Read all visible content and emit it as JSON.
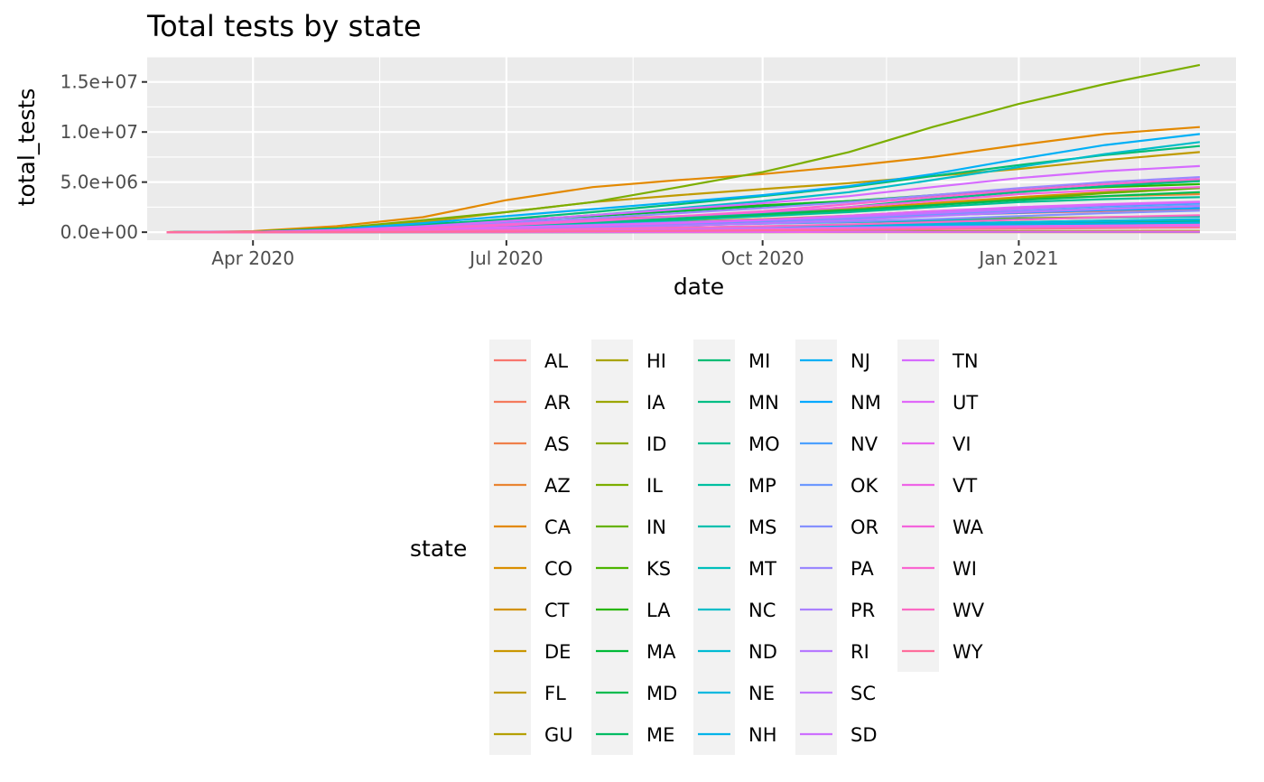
{
  "chart_data": {
    "type": "line",
    "title": "Total tests by state",
    "xlabel": "date",
    "ylabel": "total_tests",
    "x_tick_labels": [
      "Apr 2020",
      "Jul 2020",
      "Oct 2020",
      "Jan 2021"
    ],
    "x_ticks": [
      "2020-04-01",
      "2020-07-01",
      "2020-10-01",
      "2021-01-01"
    ],
    "y_tick_labels": [
      "0.0e+00",
      "5.0e+06",
      "1.0e+07",
      "1.5e+07"
    ],
    "y_ticks": [
      0,
      5000000,
      10000000,
      15000000
    ],
    "xlim": [
      "2020-02-23",
      "2021-03-20"
    ],
    "ylim": [
      -800000,
      17500000
    ],
    "grid": true,
    "legend_title": "state",
    "legend_position": "bottom",
    "x": [
      "2020-03-01",
      "2020-04-01",
      "2020-05-01",
      "2020-06-01",
      "2020-07-01",
      "2020-08-01",
      "2020-09-01",
      "2020-10-01",
      "2020-11-01",
      "2020-12-01",
      "2021-01-01",
      "2021-02-01",
      "2021-03-07"
    ],
    "series": [
      {
        "name": "AL",
        "color": "#F8766D",
        "values": [
          0,
          20000,
          120000,
          280000,
          480000,
          700000,
          1000000,
          1300000,
          1500000,
          1700000,
          1900000,
          2100000,
          2300000
        ]
      },
      {
        "name": "AR",
        "color": "#F47A5C",
        "values": [
          0,
          15000,
          80000,
          200000,
          350000,
          550000,
          750000,
          1000000,
          1300000,
          1650000,
          2000000,
          2350000,
          2600000
        ]
      },
      {
        "name": "AS",
        "color": "#EF7F4A",
        "values": [
          0,
          0,
          0,
          0,
          0,
          500,
          1000,
          1500,
          1800,
          2000,
          2100,
          2200,
          2300
        ]
      },
      {
        "name": "AZ",
        "color": "#E98532",
        "values": [
          0,
          30000,
          150000,
          400000,
          900000,
          1300000,
          1600000,
          1900000,
          2300000,
          2800000,
          3300000,
          3600000,
          3800000
        ]
      },
      {
        "name": "CA",
        "color": "#E38900",
        "values": [
          0,
          100000,
          600000,
          1500000,
          3200000,
          4500000,
          5200000,
          5800000,
          6600000,
          7500000,
          8700000,
          9800000,
          10500000
        ]
      },
      {
        "name": "CO",
        "color": "#DA8F00",
        "values": [
          0,
          20000,
          100000,
          300000,
          550000,
          800000,
          1050000,
          1300000,
          1650000,
          2100000,
          2400000,
          2700000,
          2900000
        ]
      },
      {
        "name": "CT",
        "color": "#D39200",
        "values": [
          0,
          25000,
          150000,
          400000,
          700000,
          1000000,
          1400000,
          1800000,
          2300000,
          2900000,
          3500000,
          4000000,
          4500000
        ]
      },
      {
        "name": "DE",
        "color": "#CA9700",
        "values": [
          0,
          5000,
          40000,
          100000,
          180000,
          260000,
          340000,
          420000,
          520000,
          650000,
          800000,
          950000,
          1100000
        ]
      },
      {
        "name": "FL",
        "color": "#C09B00",
        "values": [
          0,
          60000,
          400000,
          1000000,
          2000000,
          3000000,
          3700000,
          4300000,
          4900000,
          5600000,
          6300000,
          7200000,
          8000000
        ]
      },
      {
        "name": "GU",
        "color": "#B5A000",
        "values": [
          0,
          500,
          3000,
          7000,
          12000,
          20000,
          35000,
          55000,
          75000,
          95000,
          110000,
          120000,
          125000
        ]
      },
      {
        "name": "HI",
        "color": "#A9A400",
        "values": [
          0,
          5000,
          30000,
          60000,
          100000,
          160000,
          280000,
          400000,
          550000,
          700000,
          850000,
          1000000,
          1150000
        ]
      },
      {
        "name": "IA",
        "color": "#9CA700",
        "values": [
          0,
          10000,
          70000,
          200000,
          350000,
          520000,
          700000,
          880000,
          1050000,
          1250000,
          1400000,
          1500000,
          1600000
        ]
      },
      {
        "name": "ID",
        "color": "#8DAB00",
        "values": [
          0,
          5000,
          30000,
          70000,
          130000,
          210000,
          290000,
          370000,
          450000,
          520000,
          580000,
          630000,
          680000
        ]
      },
      {
        "name": "IL",
        "color": "#7CAE00",
        "values": [
          0,
          60000,
          400000,
          1200000,
          2000000,
          3000000,
          4500000,
          6000000,
          8000000,
          10500000,
          12800000,
          14800000,
          16700000
        ]
      },
      {
        "name": "IN",
        "color": "#66B200",
        "values": [
          0,
          20000,
          120000,
          400000,
          700000,
          1000000,
          1350000,
          1700000,
          2100000,
          2700000,
          3300000,
          3900000,
          4400000
        ]
      },
      {
        "name": "KS",
        "color": "#4DB500",
        "values": [
          0,
          5000,
          40000,
          120000,
          220000,
          330000,
          450000,
          570000,
          700000,
          850000,
          1000000,
          1150000,
          1250000
        ]
      },
      {
        "name": "LA",
        "color": "#27B700",
        "values": [
          0,
          30000,
          250000,
          600000,
          1100000,
          1700000,
          2200000,
          2700000,
          3100000,
          3600000,
          4100000,
          4500000,
          4800000
        ]
      },
      {
        "name": "MA",
        "color": "#00BA38",
        "values": [
          0,
          40000,
          350000,
          800000,
          1200000,
          1600000,
          2100000,
          2600000,
          3100000,
          3700000,
          4300000,
          4800000,
          5200000
        ]
      },
      {
        "name": "MD",
        "color": "#00BB4E",
        "values": [
          0,
          20000,
          120000,
          400000,
          700000,
          1000000,
          1400000,
          1800000,
          2200000,
          2700000,
          3200000,
          3600000,
          4000000
        ]
      },
      {
        "name": "ME",
        "color": "#00BC64",
        "values": [
          0,
          3000,
          20000,
          60000,
          120000,
          190000,
          280000,
          370000,
          470000,
          600000,
          750000,
          900000,
          1050000
        ]
      },
      {
        "name": "MI",
        "color": "#00BD75",
        "values": [
          0,
          25000,
          250000,
          700000,
          1300000,
          2000000,
          2800000,
          3600000,
          4500000,
          5600000,
          6700000,
          7700000,
          8600000
        ]
      },
      {
        "name": "MN",
        "color": "#00BE85",
        "values": [
          0,
          10000,
          100000,
          300000,
          650000,
          1000000,
          1450000,
          1900000,
          2500000,
          3300000,
          4000000,
          4600000,
          5100000
        ]
      },
      {
        "name": "MO",
        "color": "#00BF93",
        "values": [
          0,
          10000,
          100000,
          300000,
          550000,
          850000,
          1200000,
          1600000,
          2000000,
          2500000,
          3000000,
          3300000,
          3500000
        ]
      },
      {
        "name": "MP",
        "color": "#00C0A1",
        "values": [
          0,
          0,
          200,
          1000,
          3000,
          6000,
          10000,
          15000,
          20000,
          25000,
          28000,
          30000,
          32000
        ]
      },
      {
        "name": "MS",
        "color": "#00C0AF",
        "values": [
          0,
          5000,
          60000,
          200000,
          350000,
          550000,
          700000,
          850000,
          1000000,
          1150000,
          1300000,
          1450000,
          1550000
        ]
      },
      {
        "name": "MT",
        "color": "#00BFBC",
        "values": [
          0,
          3000,
          20000,
          50000,
          100000,
          180000,
          280000,
          380000,
          480000,
          580000,
          680000,
          780000,
          850000
        ]
      },
      {
        "name": "NC",
        "color": "#00BDC8",
        "values": [
          0,
          20000,
          150000,
          500000,
          1000000,
          1700000,
          2400000,
          3100000,
          4000000,
          5200000,
          6500000,
          7800000,
          9000000
        ]
      },
      {
        "name": "ND",
        "color": "#00BBD4",
        "values": [
          0,
          5000,
          40000,
          100000,
          160000,
          230000,
          320000,
          450000,
          600000,
          780000,
          950000,
          1100000,
          1250000
        ]
      },
      {
        "name": "NE",
        "color": "#00B8DF",
        "values": [
          0,
          5000,
          40000,
          120000,
          220000,
          330000,
          450000,
          570000,
          700000,
          850000,
          1000000,
          1150000,
          1300000
        ]
      },
      {
        "name": "NH",
        "color": "#00B4E9",
        "values": [
          0,
          3000,
          30000,
          80000,
          150000,
          230000,
          310000,
          400000,
          500000,
          620000,
          750000,
          870000,
          980000
        ]
      },
      {
        "name": "NJ",
        "color": "#00B0F6",
        "values": [
          0,
          30000,
          300000,
          900000,
          1600000,
          2300000,
          3000000,
          3700000,
          4600000,
          5800000,
          7300000,
          8700000,
          9800000
        ]
      },
      {
        "name": "NM",
        "color": "#01A9FF",
        "values": [
          0,
          10000,
          100000,
          280000,
          450000,
          650000,
          850000,
          1050000,
          1300000,
          1650000,
          1950000,
          2200000,
          2400000
        ]
      },
      {
        "name": "NV",
        "color": "#4CA1FF",
        "values": [
          0,
          10000,
          80000,
          250000,
          500000,
          750000,
          1000000,
          1250000,
          1550000,
          1900000,
          2300000,
          2600000,
          2850000
        ]
      },
      {
        "name": "OK",
        "color": "#6D99FF",
        "values": [
          0,
          8000,
          80000,
          230000,
          400000,
          600000,
          850000,
          1100000,
          1400000,
          1750000,
          2100000,
          2400000,
          2650000
        ]
      },
      {
        "name": "OR",
        "color": "#8590FF",
        "values": [
          0,
          8000,
          60000,
          180000,
          320000,
          500000,
          680000,
          860000,
          1050000,
          1300000,
          1600000,
          1900000,
          2150000
        ]
      },
      {
        "name": "PA",
        "color": "#9A88FF",
        "values": [
          0,
          20000,
          150000,
          450000,
          900000,
          1400000,
          1900000,
          2400000,
          3000000,
          3700000,
          4400000,
          5000000,
          5500000
        ]
      },
      {
        "name": "PR",
        "color": "#AA80FF",
        "values": [
          0,
          2000,
          20000,
          80000,
          150000,
          250000,
          330000,
          400000,
          470000,
          540000,
          600000,
          650000,
          700000
        ]
      },
      {
        "name": "RI",
        "color": "#B779FF",
        "values": [
          0,
          5000,
          60000,
          180000,
          300000,
          450000,
          650000,
          900000,
          1200000,
          1600000,
          2000000,
          2300000,
          2600000
        ]
      },
      {
        "name": "SC",
        "color": "#C274FF",
        "values": [
          0,
          8000,
          60000,
          200000,
          400000,
          650000,
          900000,
          1200000,
          1500000,
          1900000,
          2300000,
          2700000,
          3000000
        ]
      },
      {
        "name": "SD",
        "color": "#CD6FFF",
        "values": [
          0,
          3000,
          20000,
          50000,
          100000,
          160000,
          220000,
          290000,
          360000,
          430000,
          500000,
          560000,
          600000
        ]
      },
      {
        "name": "TN",
        "color": "#D66BFF",
        "values": [
          0,
          20000,
          200000,
          600000,
          1100000,
          1700000,
          2300000,
          2900000,
          3600000,
          4500000,
          5400000,
          6100000,
          6600000
        ]
      },
      {
        "name": "UT",
        "color": "#E068F9",
        "values": [
          0,
          10000,
          100000,
          280000,
          480000,
          700000,
          950000,
          1250000,
          1650000,
          2100000,
          2500000,
          2800000,
          3050000
        ]
      },
      {
        "name": "VI",
        "color": "#E866F0",
        "values": [
          0,
          0,
          1000,
          3000,
          6000,
          10000,
          15000,
          20000,
          25000,
          30000,
          35000,
          40000,
          45000
        ]
      },
      {
        "name": "VT",
        "color": "#EE65E7",
        "values": [
          0,
          2000,
          15000,
          40000,
          80000,
          130000,
          200000,
          280000,
          370000,
          470000,
          570000,
          660000,
          740000
        ]
      },
      {
        "name": "WA",
        "color": "#F464DC",
        "values": [
          0,
          30000,
          200000,
          450000,
          800000,
          1200000,
          1600000,
          2000000,
          2500000,
          3100000,
          3800000,
          4200000,
          4500000
        ]
      },
      {
        "name": "WI",
        "color": "#F966D1",
        "values": [
          0,
          10000,
          100000,
          350000,
          700000,
          1100000,
          1600000,
          2100000,
          2800000,
          3500000,
          4200000,
          4800000,
          5300000
        ]
      },
      {
        "name": "WV",
        "color": "#FB69C4",
        "values": [
          0,
          5000,
          50000,
          130000,
          220000,
          330000,
          450000,
          600000,
          780000,
          1000000,
          1250000,
          1500000,
          1700000
        ]
      },
      {
        "name": "WY",
        "color": "#FE6D9C",
        "values": [
          0,
          1000,
          10000,
          30000,
          55000,
          90000,
          130000,
          180000,
          230000,
          290000,
          350000,
          410000,
          460000
        ]
      }
    ]
  }
}
